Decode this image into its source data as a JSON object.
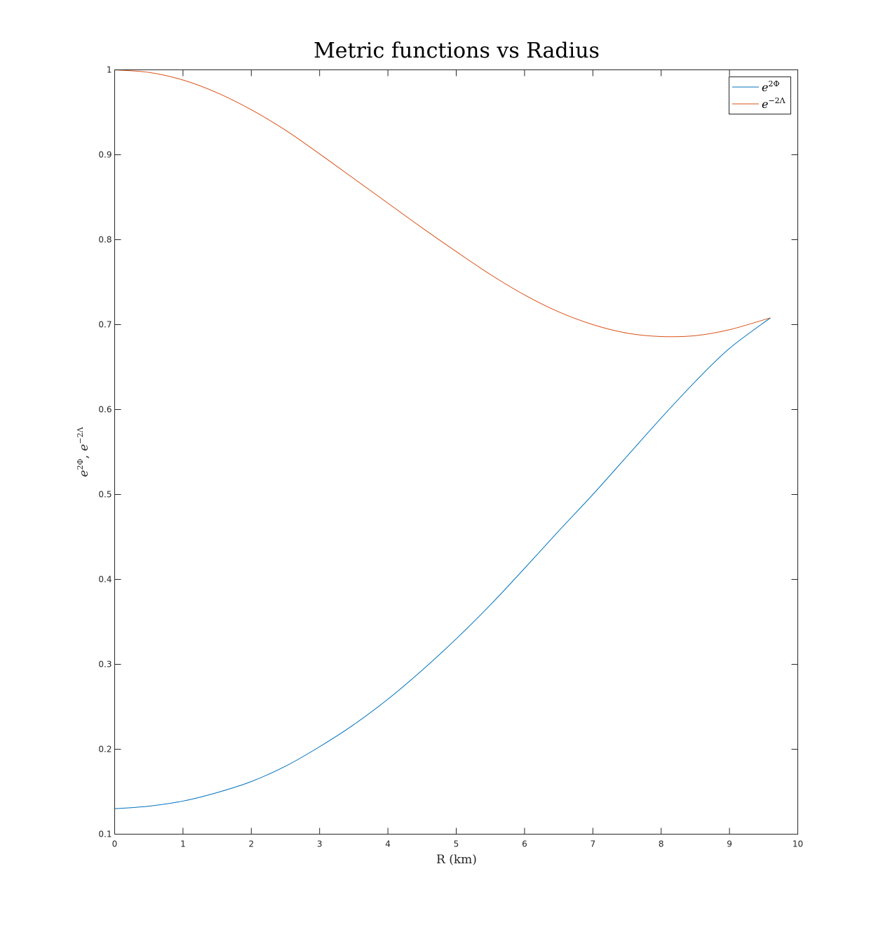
{
  "chart_data": {
    "type": "line",
    "title": "Metric functions vs Radius",
    "xlabel": "R (km)",
    "ylabel_base": "e",
    "ylabel_sup1": "2Φ",
    "ylabel_sep": ", ",
    "ylabel_sup2": "−2Λ",
    "xlim": [
      0,
      10
    ],
    "ylim": [
      0.1,
      1
    ],
    "xticks": [
      "0",
      "1",
      "2",
      "3",
      "4",
      "5",
      "6",
      "7",
      "8",
      "9",
      "10"
    ],
    "yticks": [
      "0.1",
      "0.2",
      "0.3",
      "0.4",
      "0.5",
      "0.6",
      "0.7",
      "0.8",
      "0.9",
      "1"
    ],
    "grid": false,
    "legend_position": "top-right",
    "series": [
      {
        "name_base": "e",
        "name_sup": "2Φ",
        "color": "#0072BD",
        "x": [
          0,
          0.5,
          1,
          1.5,
          2,
          2.5,
          3,
          3.5,
          4,
          4.5,
          5,
          5.5,
          6,
          6.5,
          7,
          7.5,
          8,
          8.5,
          9,
          9.6
        ],
        "y": [
          0.13,
          0.133,
          0.139,
          0.149,
          0.162,
          0.18,
          0.203,
          0.229,
          0.259,
          0.293,
          0.33,
          0.37,
          0.413,
          0.457,
          0.5,
          0.545,
          0.59,
          0.633,
          0.672,
          0.708
        ]
      },
      {
        "name_base": "e",
        "name_sup": "−2Λ",
        "color": "#D95319",
        "x": [
          0,
          0.5,
          1,
          1.5,
          2,
          2.5,
          3,
          3.5,
          4,
          4.5,
          5,
          5.5,
          6,
          6.5,
          7,
          7.5,
          8,
          8.5,
          9,
          9.6
        ],
        "y": [
          1.0,
          0.997,
          0.988,
          0.973,
          0.953,
          0.929,
          0.901,
          0.872,
          0.843,
          0.814,
          0.786,
          0.759,
          0.735,
          0.715,
          0.7,
          0.69,
          0.686,
          0.687,
          0.694,
          0.708
        ]
      }
    ]
  }
}
